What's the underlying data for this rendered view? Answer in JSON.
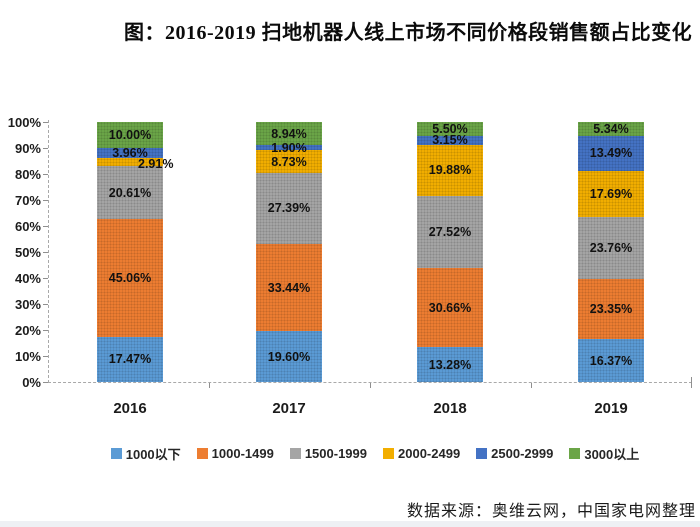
{
  "title": "图：2016-2019 扫地机器人线上市场不同价格段销售额占比变化",
  "source": "数据来源：奥维云网，中国家电网整理",
  "chart_data": {
    "type": "bar",
    "stacked": true,
    "percent_stacked": true,
    "title": "图：2016-2019 扫地机器人线上市场不同价格段销售额占比变化",
    "categories": [
      "2016",
      "2017",
      "2018",
      "2019"
    ],
    "series": [
      {
        "name": "1000以下",
        "color": "#5B9BD5",
        "values": [
          17.47,
          19.6,
          13.28,
          16.37
        ],
        "labels": [
          "17.47%",
          "19.60%",
          "13.28%",
          "16.37%"
        ]
      },
      {
        "name": "1000-1499",
        "color": "#ED7D31",
        "values": [
          45.06,
          33.44,
          30.66,
          23.35
        ],
        "labels": [
          "45.06%",
          "33.44%",
          "30.66%",
          "23.35%"
        ]
      },
      {
        "name": "1500-1999",
        "color": "#A5A5A5",
        "values": [
          20.61,
          27.39,
          27.52,
          23.76
        ],
        "labels": [
          "20.61%",
          "27.39%",
          "27.52%",
          "23.76%"
        ]
      },
      {
        "name": "2000-2499",
        "color": "#F2AE00",
        "values": [
          2.91,
          8.73,
          19.88,
          17.69
        ],
        "labels": [
          "2.91%",
          "8.73%",
          "19.88%",
          "17.69%"
        ]
      },
      {
        "name": "2500-2999",
        "color": "#4472C4",
        "values": [
          3.96,
          1.9,
          3.15,
          13.49
        ],
        "labels": [
          "3.96%",
          "1.90%",
          "3.15%",
          "13.49%"
        ]
      },
      {
        "name": "3000以上",
        "color": "#6BA547",
        "values": [
          10.0,
          8.94,
          5.5,
          5.34
        ],
        "labels": [
          "10.00%",
          "8.94%",
          "5.50%",
          "5.34%"
        ]
      }
    ],
    "label_overrides": [
      {
        "category": "2016",
        "series": "2000-2499",
        "placement": "outside-right"
      }
    ],
    "y_axis_labels": [
      "0%",
      "10%",
      "20%",
      "30%",
      "40%",
      "50%",
      "60%",
      "70%",
      "80%",
      "90%",
      "100%"
    ],
    "ylim": [
      0,
      100
    ],
    "grid": false,
    "legend_position": "bottom",
    "xlabel": "",
    "ylabel": ""
  }
}
